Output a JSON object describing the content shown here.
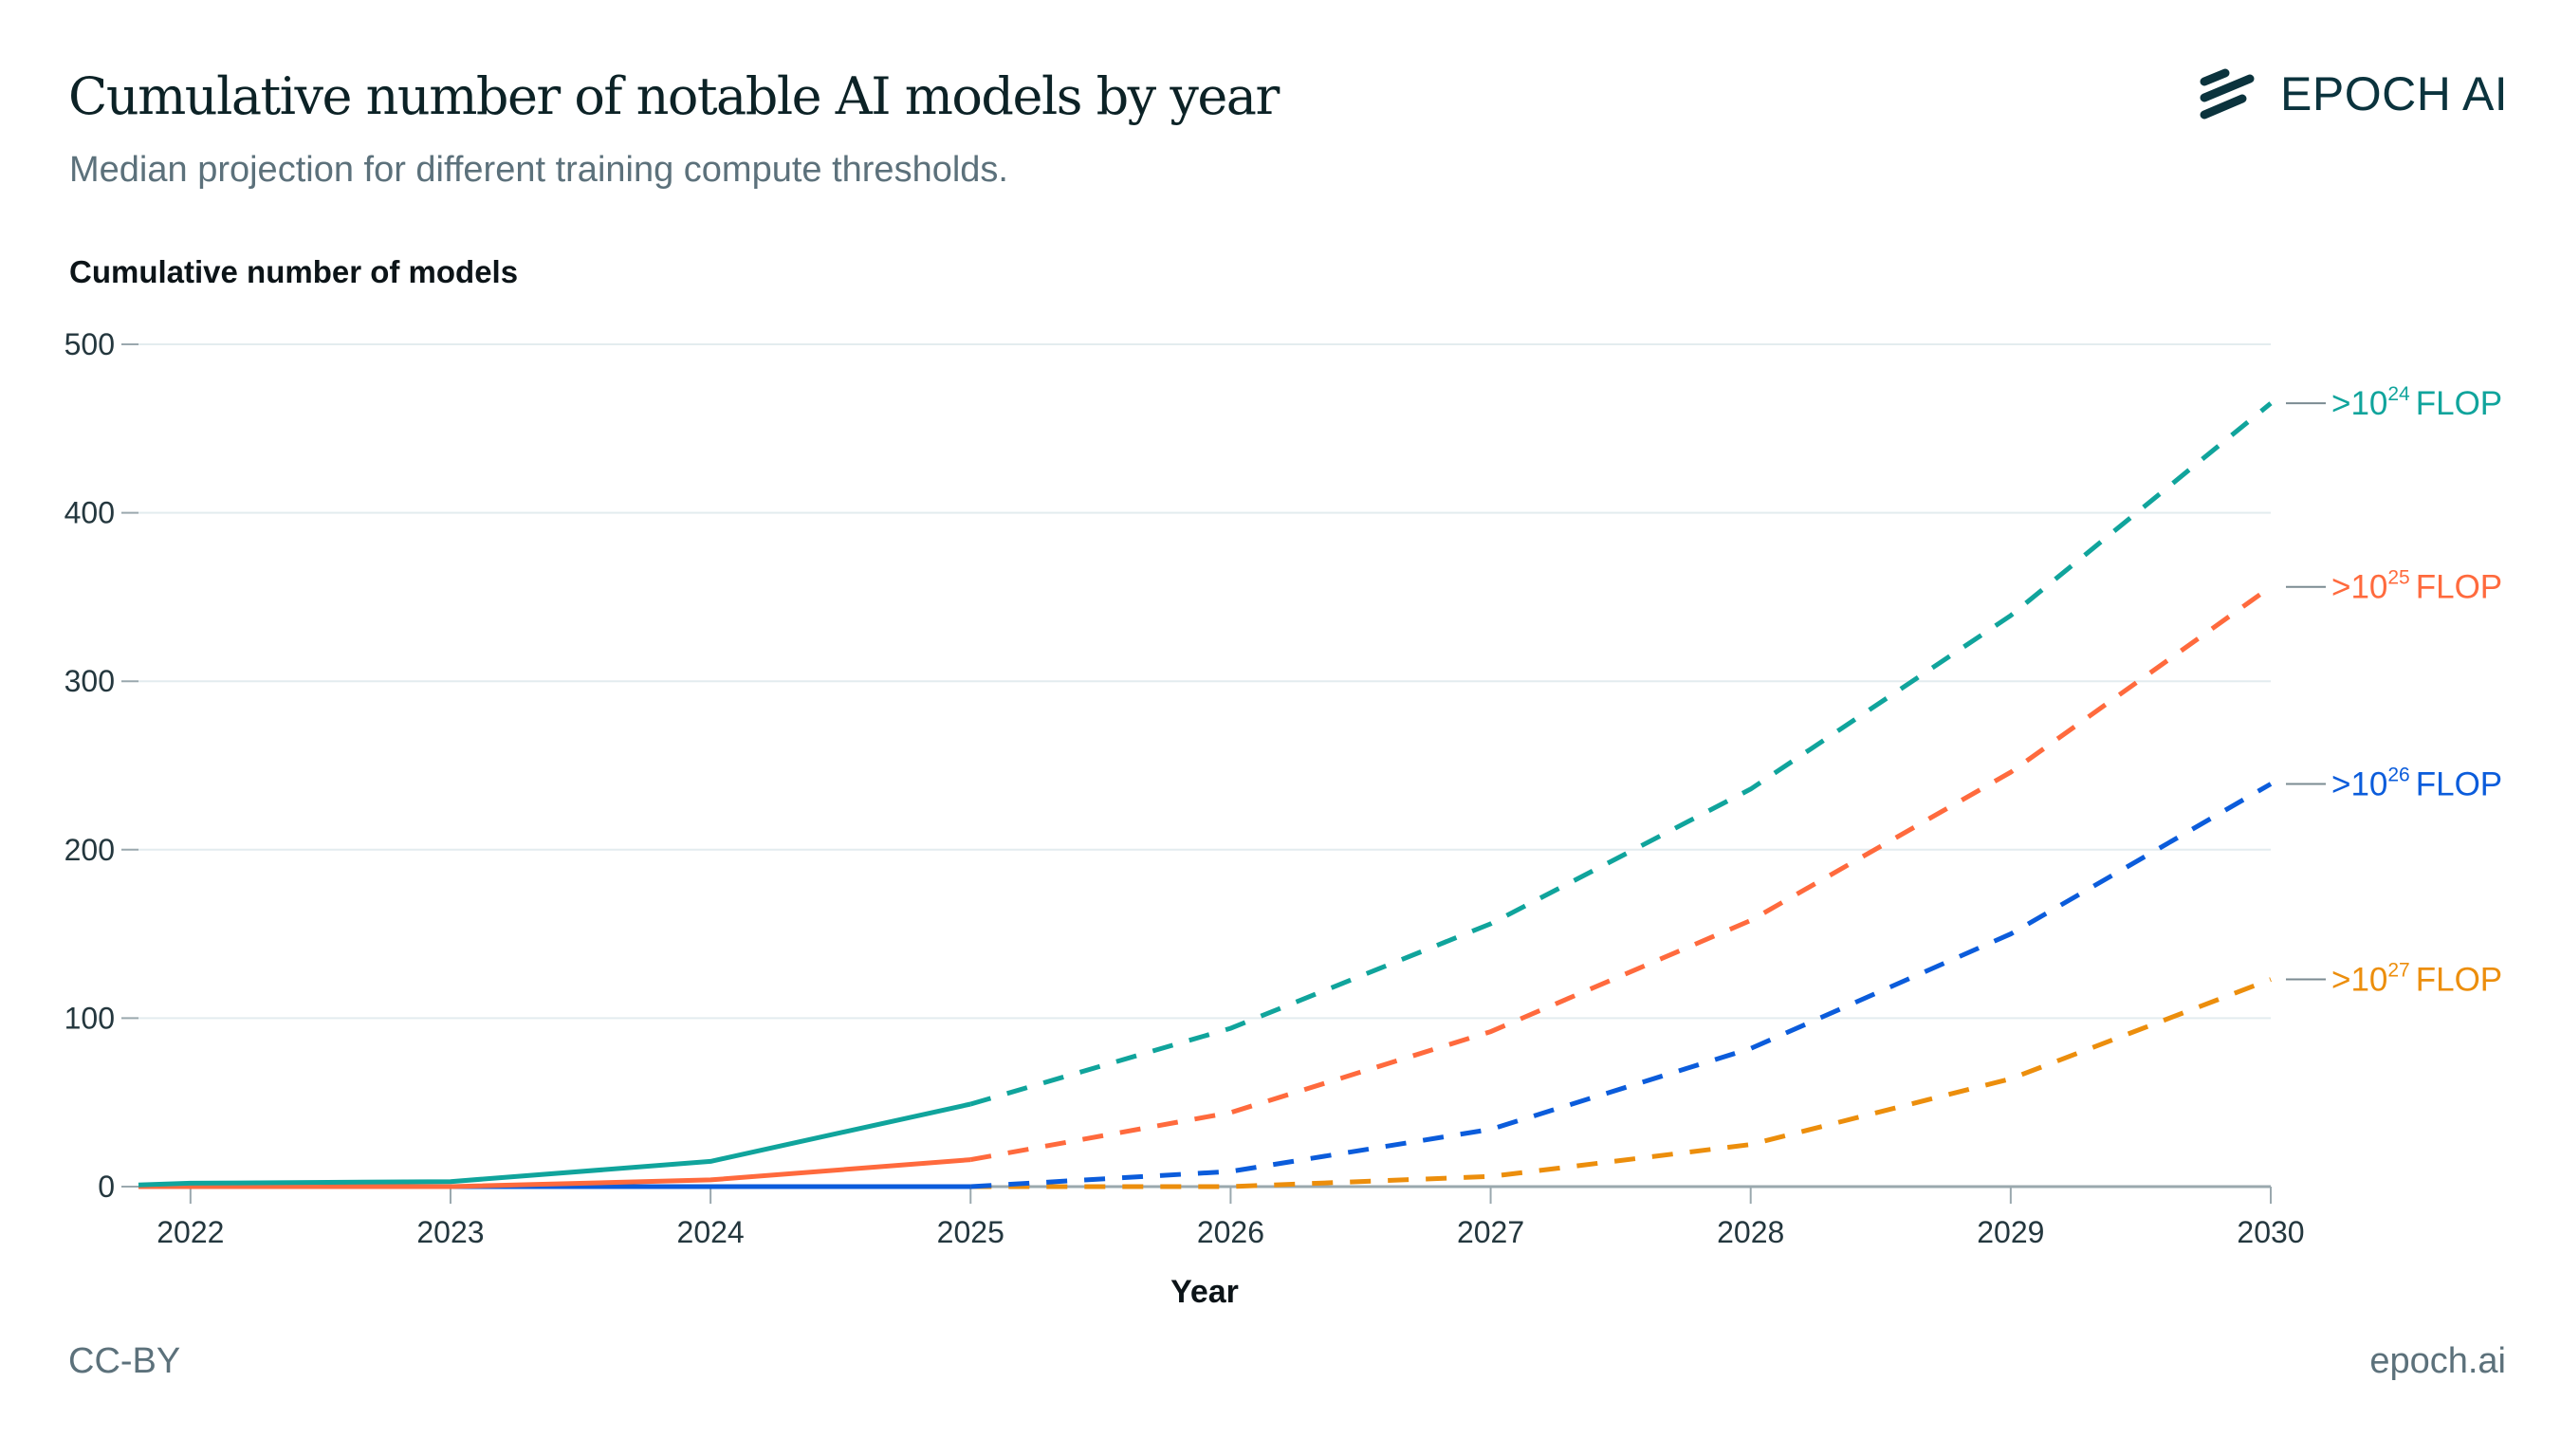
{
  "header": {
    "title": "Cumulative number of notable AI models by year",
    "subtitle": "Median projection for different training compute thresholds.",
    "logo_text": "EPOCH AI"
  },
  "footer": {
    "license": "CC-BY",
    "site": "epoch.ai"
  },
  "colors": {
    "teal": "#10a49c",
    "orange": "#ff6a3d",
    "blue": "#0b5cdb",
    "amber": "#ec8e0c",
    "grid": "#e3ecef",
    "axis": "#9aa8ae",
    "text_dark": "#24373e"
  },
  "chart_data": {
    "type": "line",
    "title": "Cumulative number of notable AI models by year",
    "subtitle": "Median projection for different training compute thresholds.",
    "xlabel": "Year",
    "ylabel": "Cumulative number of models",
    "xlim": [
      2021.8,
      2030
    ],
    "ylim": [
      0,
      500
    ],
    "x_ticks": [
      "2022",
      "2023",
      "2024",
      "2025",
      "2026",
      "2027",
      "2028",
      "2029",
      "2030"
    ],
    "y_ticks": [
      "0",
      "100",
      "200",
      "300",
      "400",
      "500"
    ],
    "y_tick_values": [
      0,
      100,
      200,
      300,
      400,
      500
    ],
    "grid": true,
    "legend": "inline-right",
    "projection_start": 2025,
    "series": [
      {
        "name": ">10^24 FLOP",
        "label_base": ">10",
        "label_exp": "24",
        "label_unit": "FLOP",
        "color": "#10a49c",
        "historical": {
          "x": [
            2021.8,
            2022,
            2023,
            2024,
            2025
          ],
          "y": [
            1,
            2,
            3,
            15,
            49
          ]
        },
        "projected": {
          "x": [
            2025,
            2026,
            2027,
            2028,
            2029,
            2030
          ],
          "y": [
            49,
            94,
            156,
            236,
            339,
            465
          ]
        }
      },
      {
        "name": ">10^25 FLOP",
        "label_base": ">10",
        "label_exp": "25",
        "label_unit": "FLOP",
        "color": "#ff6a3d",
        "historical": {
          "x": [
            2021.8,
            2022,
            2023,
            2024,
            2025
          ],
          "y": [
            0,
            0,
            0,
            4,
            16
          ]
        },
        "projected": {
          "x": [
            2025,
            2026,
            2027,
            2028,
            2029,
            2030
          ],
          "y": [
            16,
            44,
            92,
            158,
            246,
            356
          ]
        }
      },
      {
        "name": ">10^26 FLOP",
        "label_base": ">10",
        "label_exp": "26",
        "label_unit": "FLOP",
        "color": "#0b5cdb",
        "historical": {
          "x": [
            2021.8,
            2022,
            2023,
            2024,
            2025
          ],
          "y": [
            0,
            0,
            0,
            0,
            0
          ]
        },
        "projected": {
          "x": [
            2025,
            2026,
            2027,
            2028,
            2029,
            2030
          ],
          "y": [
            0,
            9,
            34,
            82,
            150,
            239
          ]
        }
      },
      {
        "name": ">10^27 FLOP",
        "label_base": ">10",
        "label_exp": "27",
        "label_unit": "FLOP",
        "color": "#ec8e0c",
        "historical": {
          "x": [
            2021.8,
            2022,
            2023,
            2024,
            2025
          ],
          "y": [
            0,
            0,
            0,
            0,
            0
          ]
        },
        "projected": {
          "x": [
            2025,
            2026,
            2027,
            2028,
            2029,
            2030
          ],
          "y": [
            0,
            0,
            6,
            25,
            64,
            123
          ]
        }
      }
    ]
  }
}
